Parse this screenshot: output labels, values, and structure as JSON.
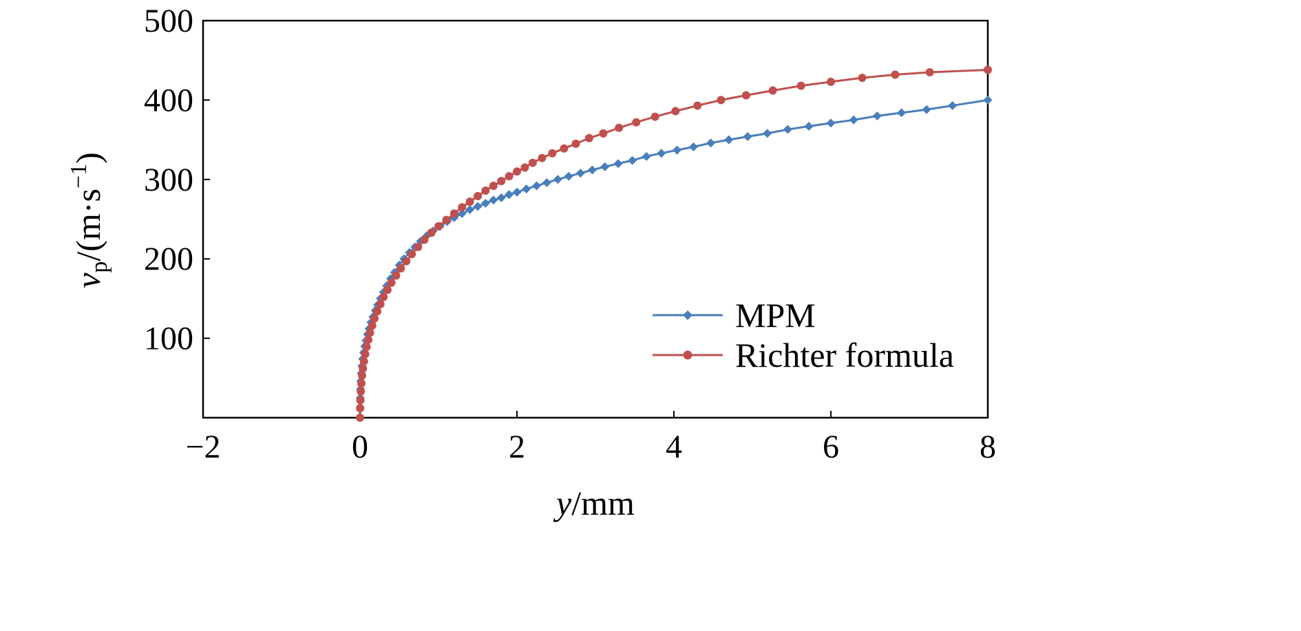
{
  "chart_data": {
    "type": "line",
    "title": "",
    "xlabel": {
      "var": "y",
      "unit": "/mm"
    },
    "ylabel": {
      "var": "v",
      "sub": "p",
      "unit_pre": "/(m·s",
      "sup": "−1",
      "unit_post": ")"
    },
    "xlim": [
      -2,
      8
    ],
    "ylim": [
      0,
      500
    ],
    "xticks": [
      -2,
      0,
      2,
      4,
      6,
      8
    ],
    "xtick_labels": [
      "−2",
      "0",
      "2",
      "4",
      "6",
      "8"
    ],
    "yticks": [
      100,
      200,
      300,
      400,
      500
    ],
    "ytick_labels": [
      "100",
      "200",
      "300",
      "400",
      "500"
    ],
    "grid": false,
    "legend_position": "lower-right",
    "series": [
      {
        "name": "MPM",
        "color": "#4a7ebb",
        "marker": "diamond",
        "x": [
          0,
          0.001,
          0.003,
          0.006,
          0.01,
          0.016,
          0.024,
          0.034,
          0.046,
          0.06,
          0.076,
          0.095,
          0.115,
          0.14,
          0.165,
          0.195,
          0.225,
          0.26,
          0.3,
          0.34,
          0.39,
          0.44,
          0.5,
          0.56,
          0.63,
          0.7,
          0.77,
          0.85,
          0.93,
          1.02,
          1.11,
          1.2,
          1.3,
          1.4,
          1.5,
          1.6,
          1.7,
          1.8,
          1.9,
          2.0,
          2.12,
          2.25,
          2.38,
          2.52,
          2.66,
          2.81,
          2.96,
          3.12,
          3.29,
          3.47,
          3.65,
          3.84,
          4.04,
          4.25,
          4.47,
          4.7,
          4.94,
          5.19,
          5.45,
          5.72,
          6.0,
          6.29,
          6.59,
          6.9,
          7.22,
          7.55,
          8.0
        ],
        "y": [
          0,
          12,
          25,
          36,
          46,
          56,
          65,
          74,
          82,
          90,
          97,
          105,
          112,
          120,
          127,
          135,
          142,
          150,
          158,
          166,
          175,
          183,
          192,
          200,
          208,
          215,
          222,
          229,
          235,
          241,
          247,
          252,
          257,
          262,
          266,
          270,
          274,
          277,
          281,
          284,
          288,
          292,
          296,
          300,
          304,
          308,
          312,
          316,
          320,
          324,
          329,
          333,
          337,
          341,
          346,
          350,
          354,
          358,
          363,
          367,
          371,
          375,
          380,
          384,
          388,
          393,
          400
        ]
      },
      {
        "name": "Richter formula",
        "color": "#c0504d",
        "marker": "circle",
        "x": [
          0,
          0.002,
          0.005,
          0.01,
          0.017,
          0.026,
          0.037,
          0.05,
          0.066,
          0.084,
          0.105,
          0.128,
          0.155,
          0.185,
          0.22,
          0.26,
          0.3,
          0.35,
          0.4,
          0.46,
          0.52,
          0.59,
          0.66,
          0.74,
          0.82,
          0.91,
          1.0,
          1.1,
          1.2,
          1.3,
          1.4,
          1.5,
          1.6,
          1.7,
          1.8,
          1.9,
          2.0,
          2.1,
          2.2,
          2.32,
          2.45,
          2.6,
          2.75,
          2.92,
          3.1,
          3.3,
          3.52,
          3.76,
          4.02,
          4.3,
          4.6,
          4.92,
          5.26,
          5.62,
          6.0,
          6.4,
          6.82,
          7.26,
          8.0
        ],
        "y": [
          0,
          12,
          22,
          33,
          43,
          53,
          62,
          71,
          80,
          89,
          98,
          107,
          116,
          125,
          134,
          143,
          152,
          161,
          170,
          179,
          188,
          197,
          206,
          215,
          224,
          233,
          241,
          249,
          257,
          265,
          272,
          279,
          286,
          292,
          298,
          304,
          310,
          315,
          321,
          327,
          333,
          339,
          345,
          352,
          358,
          365,
          372,
          379,
          386,
          393,
          400,
          406,
          412,
          418,
          423,
          428,
          432,
          435,
          438
        ]
      }
    ]
  }
}
